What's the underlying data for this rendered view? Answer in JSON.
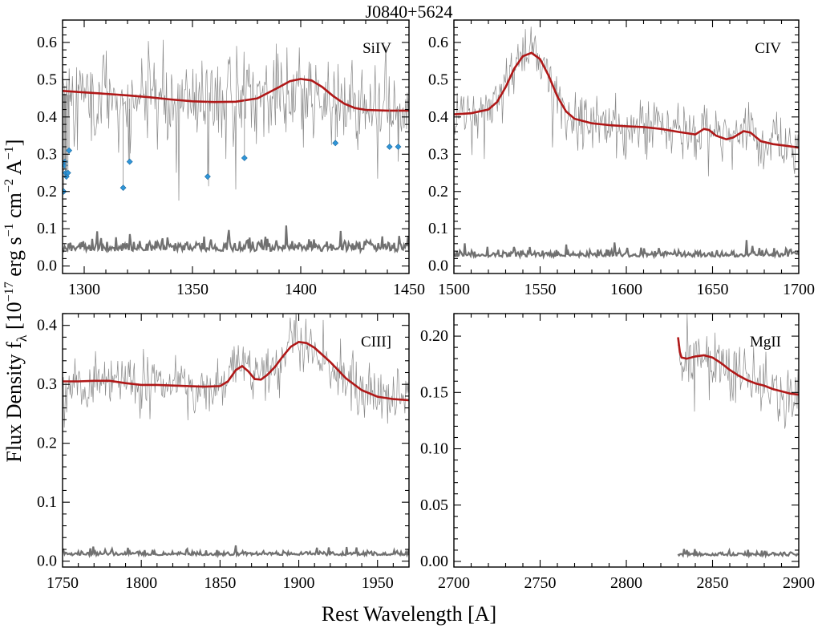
{
  "title": "J0840+5624",
  "xlabel": "Rest Wavelength [A]",
  "ylabel": "Flux Density f_λ [10^-17 erg s^-1 cm^-2 A^-1]",
  "ylabel_parts": {
    "prefix": "Flux Density f",
    "sub": "λ",
    "open": " [10",
    "exp1": "−17",
    "erg": " erg s",
    "exp2": "−1",
    "cm": " cm",
    "exp3": "−2",
    "a": " A",
    "exp4": "−1",
    "close": "]"
  },
  "colors": {
    "data": "#8a8a8a",
    "model": "#b01818",
    "error": "#707070",
    "masked": "#2f95d8",
    "frame": "#000000"
  },
  "chart_data": [
    {
      "type": "line",
      "label": "SiIV",
      "xlim": [
        1290,
        1450
      ],
      "ylim": [
        -0.02,
        0.66
      ],
      "xticks": [
        1300,
        1350,
        1400,
        1450
      ],
      "xtick_labels": [
        "1300",
        "1350",
        "1400",
        "1450"
      ],
      "yticks": [
        0.0,
        0.1,
        0.2,
        0.3,
        0.4,
        0.5,
        0.6
      ],
      "ytick_labels": [
        "0.0",
        "0.1",
        "0.2",
        "0.3",
        "0.4",
        "0.5",
        "0.6"
      ],
      "flux_baseline": [
        [
          1290,
          0.46
        ],
        [
          1320,
          0.45
        ],
        [
          1360,
          0.44
        ],
        [
          1400,
          0.46
        ],
        [
          1420,
          0.43
        ],
        [
          1450,
          0.42
        ]
      ],
      "flux_noise": 0.08,
      "model": [
        [
          1290,
          0.47
        ],
        [
          1300,
          0.466
        ],
        [
          1310,
          0.462
        ],
        [
          1320,
          0.458
        ],
        [
          1330,
          0.453
        ],
        [
          1340,
          0.447
        ],
        [
          1350,
          0.442
        ],
        [
          1360,
          0.44
        ],
        [
          1370,
          0.441
        ],
        [
          1380,
          0.45
        ],
        [
          1390,
          0.48
        ],
        [
          1395,
          0.496
        ],
        [
          1400,
          0.502
        ],
        [
          1405,
          0.498
        ],
        [
          1410,
          0.48
        ],
        [
          1415,
          0.456
        ],
        [
          1420,
          0.436
        ],
        [
          1425,
          0.424
        ],
        [
          1430,
          0.419
        ],
        [
          1440,
          0.417
        ],
        [
          1450,
          0.417
        ]
      ],
      "error_level": 0.04,
      "masked_points": [
        [
          1290.5,
          0.2
        ],
        [
          1291.0,
          0.27
        ],
        [
          1291.2,
          0.28
        ],
        [
          1291.5,
          0.25
        ],
        [
          1291.8,
          0.24
        ],
        [
          1292.5,
          0.25
        ],
        [
          1293.0,
          0.31
        ],
        [
          1318.0,
          0.21
        ],
        [
          1321.0,
          0.28
        ],
        [
          1357.0,
          0.24
        ],
        [
          1374.0,
          0.29
        ],
        [
          1416.0,
          0.33
        ],
        [
          1441.0,
          0.32
        ],
        [
          1445.0,
          0.32
        ]
      ]
    },
    {
      "type": "line",
      "label": "CIV",
      "xlim": [
        1500,
        1700
      ],
      "ylim": [
        -0.02,
        0.66
      ],
      "xticks": [
        1500,
        1550,
        1600,
        1650,
        1700
      ],
      "xtick_labels": [
        "1500",
        "1550",
        "1600",
        "1650",
        "1700"
      ],
      "yticks": [
        0.0,
        0.1,
        0.2,
        0.3,
        0.4,
        0.5,
        0.6
      ],
      "ytick_labels": [
        "0.0",
        "0.1",
        "0.2",
        "0.3",
        "0.4",
        "0.5",
        "0.6"
      ],
      "flux_noise": 0.045,
      "model": [
        [
          1500,
          0.407
        ],
        [
          1510,
          0.41
        ],
        [
          1520,
          0.42
        ],
        [
          1525,
          0.44
        ],
        [
          1530,
          0.48
        ],
        [
          1535,
          0.53
        ],
        [
          1540,
          0.563
        ],
        [
          1545,
          0.572
        ],
        [
          1550,
          0.555
        ],
        [
          1555,
          0.51
        ],
        [
          1560,
          0.455
        ],
        [
          1565,
          0.415
        ],
        [
          1570,
          0.395
        ],
        [
          1580,
          0.383
        ],
        [
          1590,
          0.378
        ],
        [
          1600,
          0.375
        ],
        [
          1610,
          0.373
        ],
        [
          1620,
          0.368
        ],
        [
          1630,
          0.36
        ],
        [
          1640,
          0.353
        ],
        [
          1645,
          0.368
        ],
        [
          1648,
          0.365
        ],
        [
          1652,
          0.35
        ],
        [
          1658,
          0.34
        ],
        [
          1662,
          0.345
        ],
        [
          1668,
          0.362
        ],
        [
          1672,
          0.358
        ],
        [
          1678,
          0.335
        ],
        [
          1685,
          0.327
        ],
        [
          1692,
          0.323
        ],
        [
          1700,
          0.318
        ]
      ],
      "error_level": 0.025
    },
    {
      "type": "line",
      "label": "CIII]",
      "xlim": [
        1750,
        1970
      ],
      "ylim": [
        -0.01,
        0.42
      ],
      "xticks": [
        1750,
        1800,
        1850,
        1900,
        1950
      ],
      "xtick_labels": [
        "1750",
        "1800",
        "1850",
        "1900",
        "1950"
      ],
      "yticks": [
        0.0,
        0.1,
        0.2,
        0.3,
        0.4
      ],
      "ytick_labels": [
        "0.0",
        "0.1",
        "0.2",
        "0.3",
        "0.4"
      ],
      "flux_noise": 0.03,
      "model": [
        [
          1750,
          0.305
        ],
        [
          1760,
          0.305
        ],
        [
          1770,
          0.306
        ],
        [
          1780,
          0.306
        ],
        [
          1790,
          0.302
        ],
        [
          1800,
          0.299
        ],
        [
          1810,
          0.299
        ],
        [
          1820,
          0.298
        ],
        [
          1830,
          0.297
        ],
        [
          1840,
          0.296
        ],
        [
          1850,
          0.297
        ],
        [
          1855,
          0.305
        ],
        [
          1860,
          0.324
        ],
        [
          1864,
          0.331
        ],
        [
          1868,
          0.322
        ],
        [
          1872,
          0.309
        ],
        [
          1876,
          0.308
        ],
        [
          1880,
          0.316
        ],
        [
          1885,
          0.33
        ],
        [
          1890,
          0.348
        ],
        [
          1895,
          0.364
        ],
        [
          1900,
          0.372
        ],
        [
          1905,
          0.37
        ],
        [
          1910,
          0.362
        ],
        [
          1920,
          0.338
        ],
        [
          1930,
          0.31
        ],
        [
          1940,
          0.29
        ],
        [
          1950,
          0.279
        ],
        [
          1960,
          0.275
        ],
        [
          1970,
          0.273
        ]
      ],
      "error_level": 0.01
    },
    {
      "type": "line",
      "label": "MgII",
      "xlim": [
        2700,
        2900
      ],
      "ylim": [
        -0.005,
        0.22
      ],
      "xticks": [
        2700,
        2750,
        2800,
        2850,
        2900
      ],
      "xtick_labels": [
        "2700",
        "2750",
        "2800",
        "2850",
        "2900"
      ],
      "yticks": [
        0.0,
        0.05,
        0.1,
        0.15,
        0.2
      ],
      "ytick_labels": [
        "0.00",
        "0.05",
        "0.10",
        "0.15",
        "0.20"
      ],
      "flux_noise": 0.018,
      "model": [
        [
          2830,
          0.199
        ],
        [
          2831,
          0.186
        ],
        [
          2832,
          0.181
        ],
        [
          2835,
          0.18
        ],
        [
          2840,
          0.182
        ],
        [
          2845,
          0.183
        ],
        [
          2850,
          0.181
        ],
        [
          2855,
          0.176
        ],
        [
          2860,
          0.17
        ],
        [
          2865,
          0.165
        ],
        [
          2870,
          0.161
        ],
        [
          2875,
          0.158
        ],
        [
          2880,
          0.156
        ],
        [
          2885,
          0.153
        ],
        [
          2890,
          0.151
        ],
        [
          2895,
          0.149
        ],
        [
          2900,
          0.148
        ]
      ],
      "error_level": 0.005
    }
  ]
}
